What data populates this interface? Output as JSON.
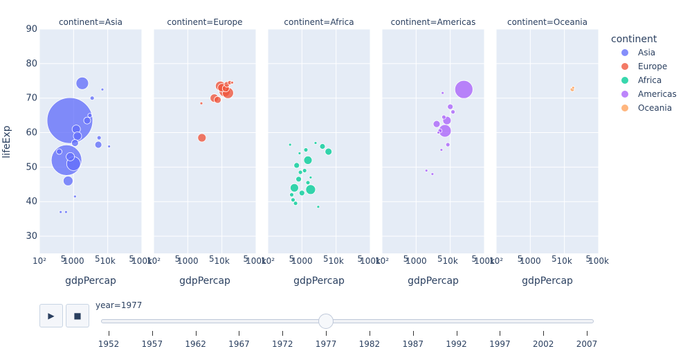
{
  "chart_data": {
    "type": "scatter",
    "subtype": "bubble-facets",
    "y_axis": {
      "title": "lifeExp",
      "range": [
        25,
        90
      ],
      "ticks": [
        30,
        40,
        50,
        60,
        70,
        80,
        90
      ],
      "tick_labels": [
        "30",
        "40",
        "50",
        "60",
        "70",
        "80",
        "90"
      ]
    },
    "x_axis": {
      "title": "gdpPercap",
      "type": "log",
      "range": [
        100,
        100000
      ],
      "major_ticks": [
        100,
        1000,
        10000,
        100000
      ],
      "major_labels": [
        "10²",
        "1000",
        "10k",
        "100k"
      ],
      "minor_ticks": [
        500,
        5000,
        50000
      ],
      "minor_labels": [
        "5",
        "5",
        "5"
      ]
    },
    "facets": [
      {
        "title": "continent=Asia",
        "continent": "Asia",
        "x_major_labels": [
          "10²",
          "1000",
          "10k",
          "100k"
        ]
      },
      {
        "title": "continent=Europe",
        "continent": "Europe",
        "x_major_labels": [
          "10²",
          "1000",
          "10k",
          "100k"
        ]
      },
      {
        "title": "continent=Africa",
        "continent": "Africa",
        "x_major_labels": [
          "10²",
          "1000",
          "10k",
          "100k"
        ]
      },
      {
        "title": "continent=Americas",
        "continent": "Americas",
        "x_major_labels": [
          "10²",
          "1000",
          "10k",
          "100k"
        ]
      },
      {
        "title": "continent=Oceania",
        "continent": "Oceania",
        "x_major_labels": [
          "10²",
          "1000",
          "10k",
          "100k"
        ]
      }
    ],
    "legend": {
      "title": "continent",
      "position": "top-right",
      "items": [
        {
          "name": "Asia",
          "color": "#636efa"
        },
        {
          "name": "Europe",
          "color": "#ef553b"
        },
        {
          "name": "Africa",
          "color": "#00cc96"
        },
        {
          "name": "Americas",
          "color": "#ab63fa"
        },
        {
          "name": "Oceania",
          "color": "#ffa15a"
        }
      ]
    },
    "series": [
      {
        "name": "Asia",
        "points": [
          [
            780,
            63.5,
            33
          ],
          [
            620,
            52,
            22
          ],
          [
            1000,
            51,
            10
          ],
          [
            1800,
            74.3,
            9
          ],
          [
            690,
            46,
            7
          ],
          [
            1100,
            57,
            5
          ],
          [
            1200,
            61,
            6
          ],
          [
            1300,
            59,
            6
          ],
          [
            2500,
            63.5,
            5
          ],
          [
            3000,
            65,
            3
          ],
          [
            5300,
            56.5,
            5
          ],
          [
            5600,
            58.5,
            3
          ],
          [
            11000,
            56,
            2
          ],
          [
            3500,
            70,
            3
          ],
          [
            600,
            37,
            2
          ],
          [
            420,
            37,
            2
          ],
          [
            1100,
            41.5,
            2
          ],
          [
            380,
            54.5,
            4
          ],
          [
            800,
            53,
            6
          ],
          [
            7000,
            72.5,
            2
          ]
        ]
      },
      {
        "name": "Europe",
        "points": [
          [
            2600,
            58.5,
            6
          ],
          [
            12000,
            72,
            8
          ],
          [
            15000,
            71.5,
            8
          ],
          [
            9000,
            73.5,
            7
          ],
          [
            6000,
            70,
            6
          ],
          [
            7500,
            69.5,
            5
          ],
          [
            10000,
            73,
            6
          ],
          [
            14000,
            74,
            4
          ],
          [
            17000,
            74.5,
            3
          ],
          [
            20000,
            74.5,
            2
          ],
          [
            13000,
            72.8,
            5
          ],
          [
            2500,
            68.5,
            2
          ]
        ]
      },
      {
        "name": "Africa",
        "points": [
          [
            1800,
            43.5,
            7
          ],
          [
            1500,
            52,
            6
          ],
          [
            4000,
            56,
            4
          ],
          [
            6000,
            54.5,
            5
          ],
          [
            600,
            44,
            6
          ],
          [
            700,
            50.5,
            4
          ],
          [
            800,
            46.5,
            4
          ],
          [
            900,
            48.5,
            3
          ],
          [
            1000,
            42.5,
            4
          ],
          [
            1200,
            49,
            3
          ],
          [
            500,
            42,
            3
          ],
          [
            550,
            40.5,
            3
          ],
          [
            650,
            39.5,
            3
          ],
          [
            3000,
            38.5,
            2
          ],
          [
            2500,
            57,
            2
          ],
          [
            1300,
            55,
            3
          ],
          [
            450,
            56.5,
            2
          ],
          [
            850,
            54,
            2
          ],
          [
            1500,
            45.5,
            3
          ],
          [
            1800,
            47,
            2
          ]
        ]
      },
      {
        "name": "Americas",
        "points": [
          [
            25000,
            72.5,
            13
          ],
          [
            7000,
            60.5,
            9
          ],
          [
            8000,
            63.5,
            6
          ],
          [
            10000,
            67.5,
            4
          ],
          [
            6500,
            64.5,
            3
          ],
          [
            8500,
            56.5,
            3
          ],
          [
            4000,
            62.5,
            5
          ],
          [
            12000,
            66,
            3
          ],
          [
            5000,
            60.5,
            3
          ],
          [
            6000,
            71.5,
            2
          ],
          [
            2000,
            49,
            2
          ],
          [
            3000,
            48,
            2
          ],
          [
            4500,
            60,
            2
          ],
          [
            5500,
            55,
            2
          ]
        ]
      },
      {
        "name": "Oceania",
        "points": [
          [
            17000,
            72.5,
            3
          ],
          [
            18000,
            73,
            2
          ]
        ]
      }
    ]
  },
  "animation": {
    "play_label": "▶",
    "stop_label": "■",
    "current_value_label": "year=1977",
    "current_year": 1977,
    "years": [
      1952,
      1957,
      1962,
      1967,
      1972,
      1977,
      1982,
      1987,
      1992,
      1997,
      2002,
      2007
    ]
  }
}
